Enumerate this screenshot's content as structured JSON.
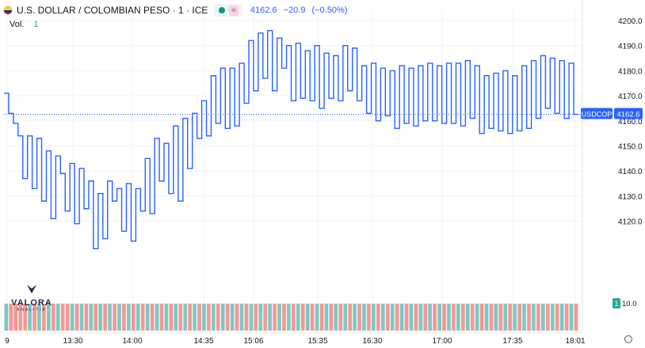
{
  "header": {
    "title": "U.S. DOLLAR / COLOMBIAN PESO · 1 · ICE",
    "approx_symbol": "≈",
    "last": "4162.6",
    "change": "−20.9",
    "change_pct": "(−0.50%)",
    "vol_label": "Vol.",
    "vol_value": "1"
  },
  "icons": [
    "flag-icon",
    "status-dot-icon",
    "approx-icon",
    "valora-logo-icon",
    "settings-gear-icon"
  ],
  "logo": {
    "name": "VALORA",
    "sub": "ANALITIK"
  },
  "colors": {
    "line": "#2962ff",
    "volume_up": "#26a69a",
    "volume_down": "#ef5350",
    "grid": "#f0f3fa"
  },
  "chart_data": {
    "type": "line",
    "y_axis": {
      "ticks": [
        "4120.0",
        "4130.0",
        "4140.0",
        "4150.0",
        "4160.0",
        "4170.0",
        "4180.0",
        "4190.0",
        "4200.0"
      ],
      "range": [
        4114,
        4202
      ]
    },
    "x_axis": {
      "ticks": [
        "9",
        "13:30",
        "14:00",
        "14:35",
        "15:06",
        "15:35",
        "16:30",
        "17:00",
        "17:35",
        "18:01"
      ]
    },
    "price_label": {
      "symbol": "USDCOP",
      "value": "4162.6"
    },
    "volume_label": {
      "count": "1",
      "value": "10.0"
    },
    "series": [
      {
        "values": [
          4171,
          4163,
          4159,
          4154,
          4137,
          4154,
          4133,
          4153,
          4128,
          4148,
          4121,
          4146,
          4139,
          4124,
          4143,
          4119,
          4141,
          4125,
          4136,
          4109,
          4131,
          4113,
          4136,
          4128,
          4133,
          4116,
          4135,
          4112,
          4133,
          4124,
          4145,
          4123,
          4153,
          4136,
          4151,
          4131,
          4158,
          4128,
          4161,
          4141,
          4163,
          4153,
          4168,
          4154,
          4178,
          4159,
          4181,
          4157,
          4181,
          4158,
          4183,
          4167,
          4192,
          4172,
          4195,
          4177,
          4196,
          4172,
          4193,
          4181,
          4190,
          4168,
          4191,
          4169,
          4188,
          4168,
          4190,
          4165,
          4187,
          4169,
          4186,
          4168,
          4190,
          4172,
          4189,
          4168,
          4182,
          4163,
          4183,
          4160,
          4181,
          4162,
          4180,
          4157,
          4182,
          4159,
          4181,
          4158,
          4182,
          4160,
          4183,
          4160,
          4182,
          4159,
          4183,
          4159,
          4183,
          4158,
          4184,
          4161,
          4182,
          4155,
          4178,
          4157,
          4179,
          4156,
          4180,
          4155,
          4178,
          4156,
          4182,
          4157,
          4184,
          4161,
          4186,
          4165,
          4185,
          4163,
          4184,
          4161,
          4183,
          4162.6
        ]
      }
    ],
    "volume": {
      "range": [
        0,
        22
      ],
      "values": [
        10,
        10,
        10,
        10,
        10,
        10,
        10,
        10,
        10,
        10,
        10,
        10,
        10,
        10,
        10,
        10,
        10,
        10,
        10,
        10,
        10,
        10,
        10,
        10,
        10,
        10,
        10,
        10,
        10,
        10,
        10,
        10,
        10,
        10,
        10,
        10,
        10,
        10,
        10,
        10,
        10,
        10,
        10,
        10,
        10,
        10,
        10,
        10,
        10,
        10,
        10,
        10,
        10,
        10,
        10,
        10,
        10,
        10,
        10,
        10,
        10,
        10,
        10,
        10,
        10,
        10,
        10,
        10,
        10,
        10,
        10,
        10,
        10,
        10,
        10,
        10,
        10,
        10,
        10,
        10,
        10,
        10,
        10,
        10,
        10,
        10,
        10,
        10,
        10,
        10,
        10,
        10,
        10,
        10,
        10,
        10,
        10,
        10,
        10,
        10,
        10,
        10,
        10,
        10,
        10,
        10,
        10,
        10,
        10,
        10,
        10,
        10,
        10,
        10,
        10,
        10,
        10,
        10,
        10,
        10,
        10,
        10
      ]
    }
  }
}
